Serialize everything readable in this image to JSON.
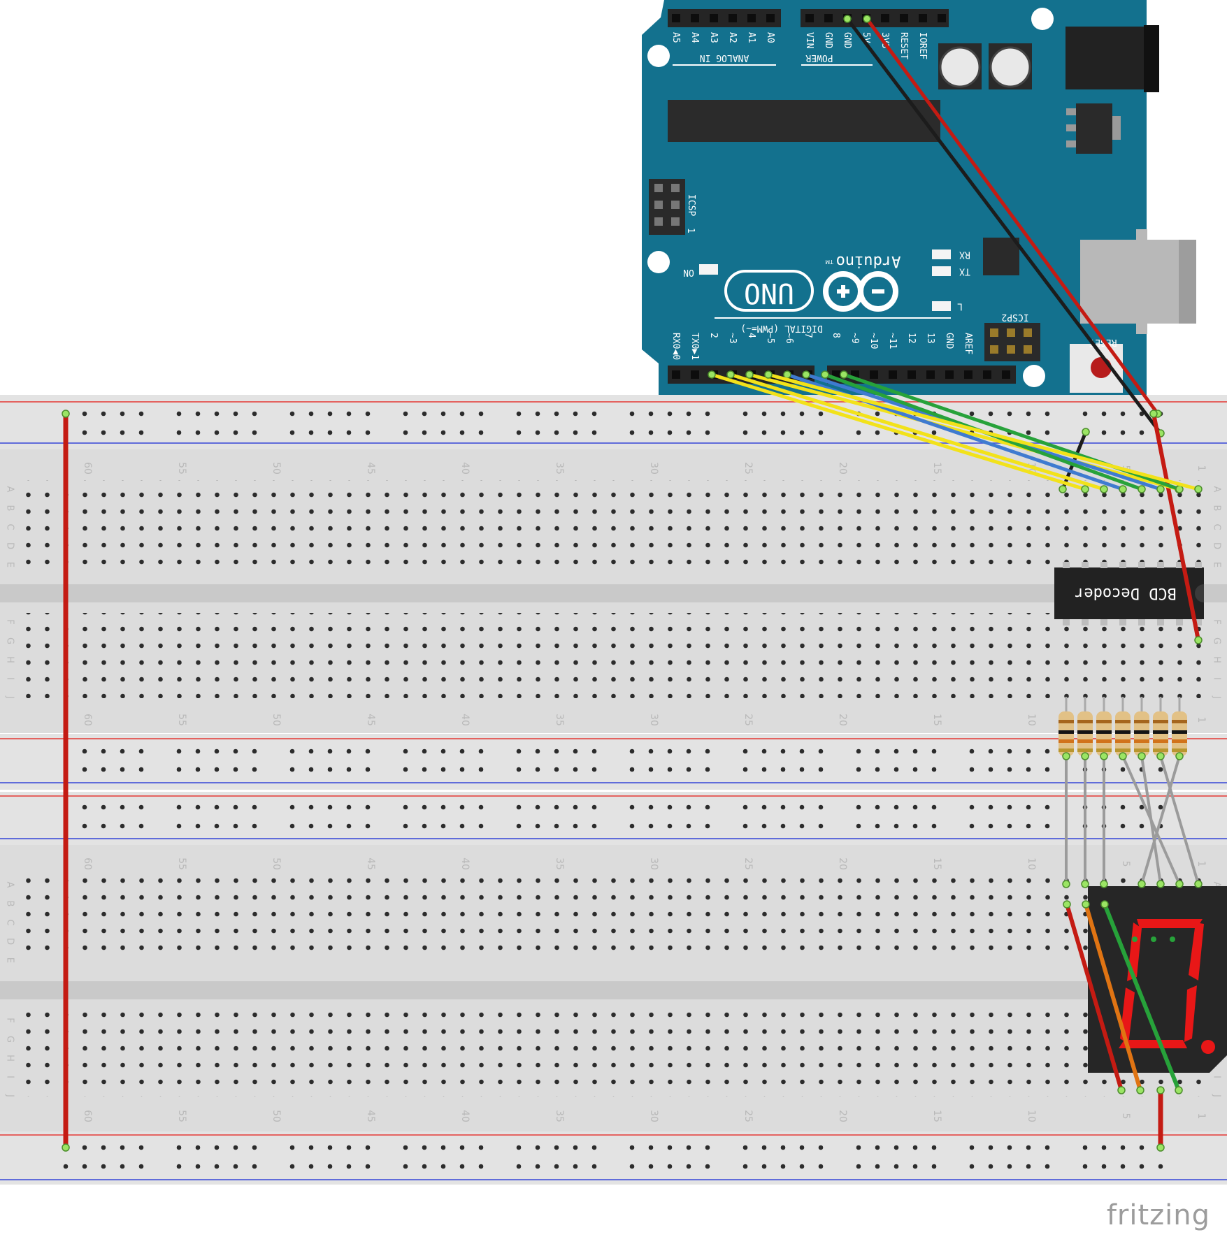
{
  "brand": "fritzing",
  "breadboard": {
    "column_labels": [
      "60",
      "55",
      "50",
      "45",
      "40",
      "35",
      "30",
      "25",
      "20",
      "15",
      "10",
      "5",
      "1"
    ],
    "row_labels_top": [
      "A",
      "B",
      "C",
      "D",
      "E"
    ],
    "row_labels_bottom": [
      "F",
      "G",
      "H",
      "I",
      "J"
    ]
  },
  "arduino": {
    "logo": "Arduino",
    "model": "UNO",
    "trademark": "TM",
    "analog_header_label": "ANALOG IN",
    "analog_pins": [
      "A5",
      "A4",
      "A3",
      "A2",
      "A1",
      "A0"
    ],
    "power_header_label": "POWER",
    "power_pins": [
      "VIN",
      "GND",
      "GND",
      "5V",
      "3V3",
      "RESET",
      "IOREF"
    ],
    "digital_header_label": "DIGITAL (PWM=~)",
    "digital_pins": [
      "RX0◀0",
      "TX0▶1",
      "2",
      "~3",
      "4",
      "~5",
      "~6",
      "7",
      "8",
      "~9",
      "~10",
      "~11",
      "12",
      "13",
      "GND",
      "AREF"
    ],
    "led_labels": {
      "rx": "RX",
      "tx": "TX",
      "l": "L",
      "on": "ON"
    },
    "icsp_label": "ICSP",
    "icsp2_label": "ICSP2",
    "icsp_pin_one": "1",
    "reset_label": "RESET"
  },
  "decoder_chip": {
    "label": "BCD Decoder"
  },
  "colors": {
    "board": "#13718e",
    "wire_red": "#c41b13",
    "wire_black": "#1c1c1c",
    "wire_yellow": "#f2e21a",
    "wire_blue": "#3f7bd0",
    "wire_green": "#27a23a",
    "wire_orange": "#e07413",
    "wire_grey": "#9b9b9b",
    "segment_on": "#e81717",
    "breadboard": "#dcdcdc"
  }
}
